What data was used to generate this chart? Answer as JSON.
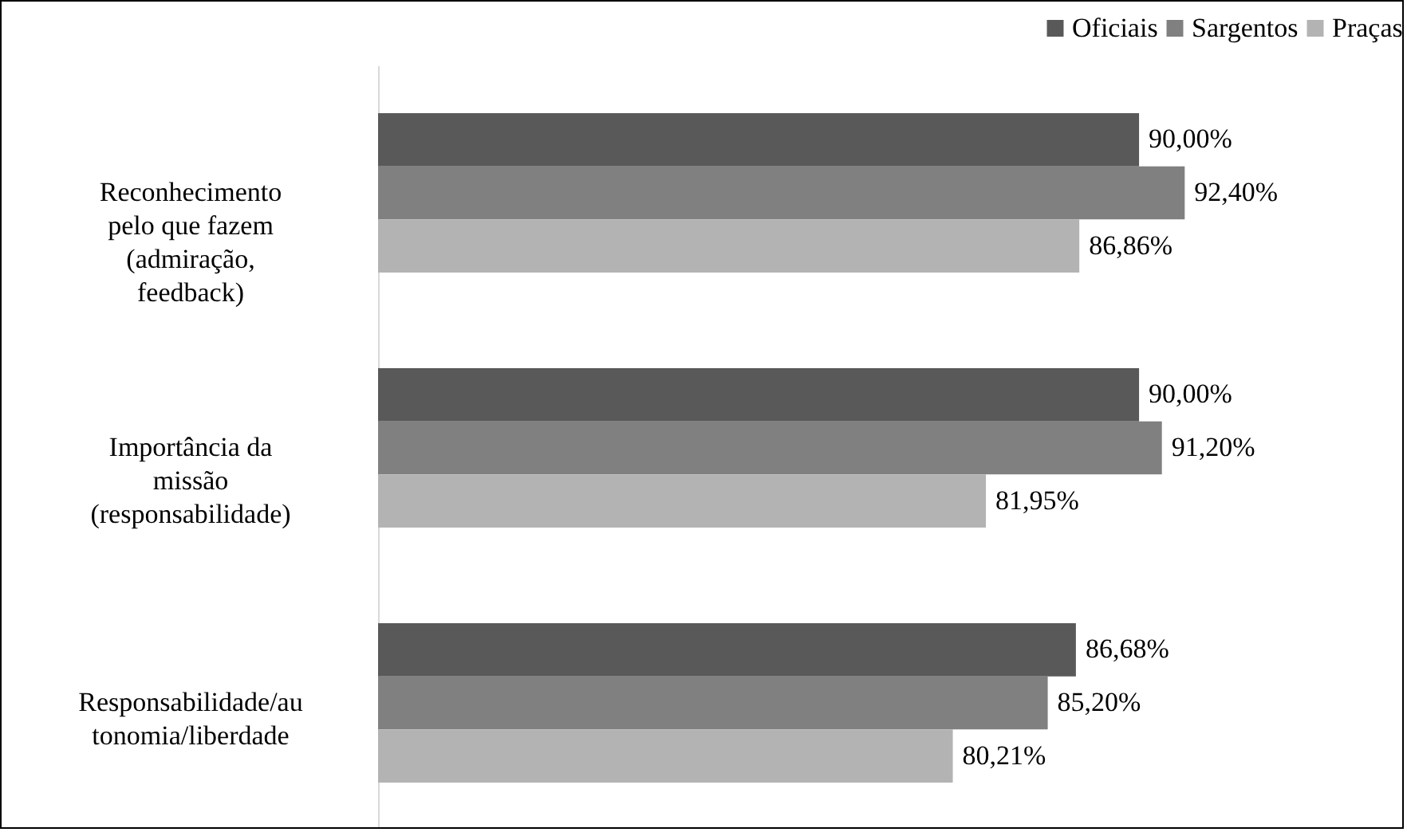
{
  "chart_data": {
    "type": "bar",
    "orientation": "horizontal",
    "categories": [
      "Reconhecimento\npelo que fazem\n(admiração,\nfeedback)",
      "Importância da\nmissão\n(responsabilidade)",
      "Responsabilidade/au\ntonomia/liberdade"
    ],
    "series": [
      {
        "name": "Oficiais",
        "color": "#595959",
        "values": [
          90.0,
          90.0,
          86.68
        ],
        "value_labels": [
          "90,00%",
          "90,00%",
          "86,68%"
        ]
      },
      {
        "name": "Sargentos",
        "color": "#808080",
        "values": [
          92.4,
          91.2,
          85.2
        ],
        "value_labels": [
          "92,40%",
          "91,20%",
          "85,20%"
        ]
      },
      {
        "name": "Praças",
        "color": "#b3b3b3",
        "values": [
          86.86,
          81.95,
          80.21
        ],
        "value_labels": [
          "86,86%",
          "81,95%",
          "80,21%"
        ]
      }
    ],
    "xlim": [
      50,
      104
    ],
    "tick_labels": "y",
    "legend": "top right"
  }
}
